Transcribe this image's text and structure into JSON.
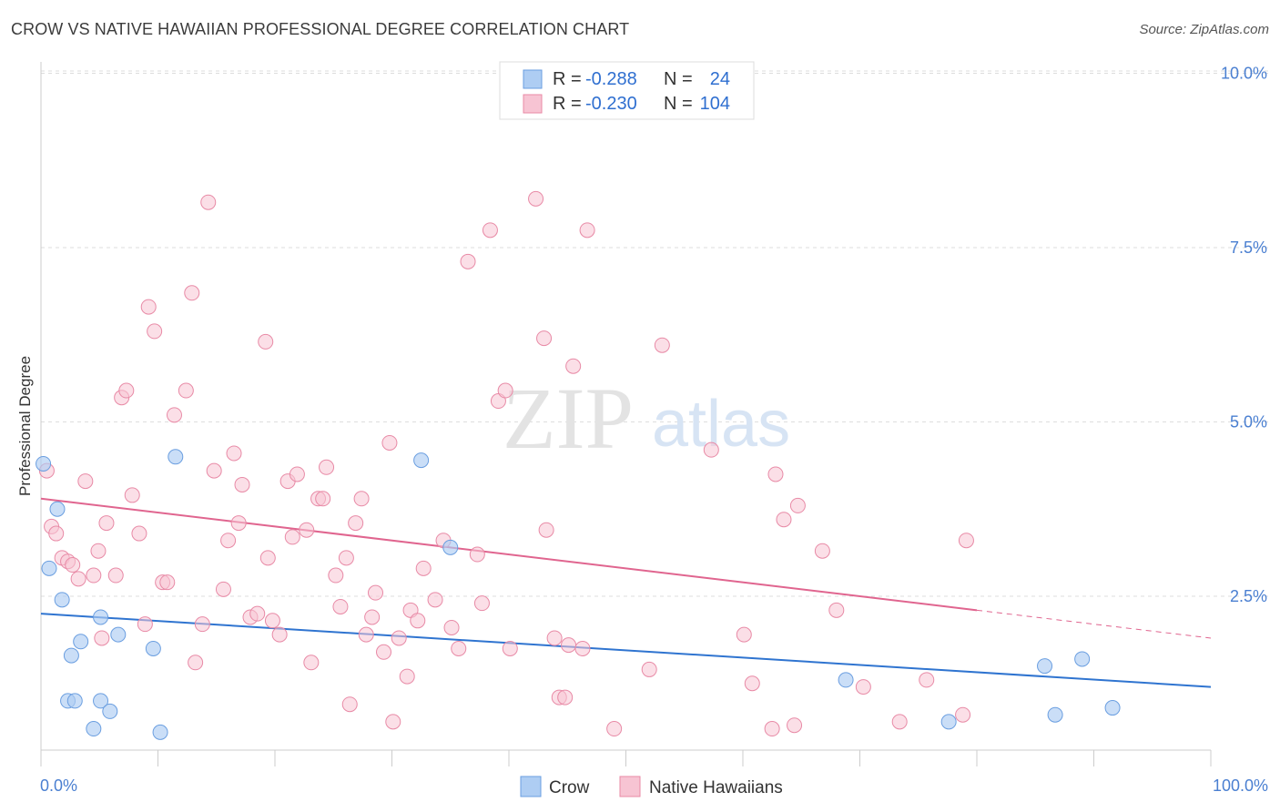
{
  "header": {
    "title": "CROW VS NATIVE HAWAIIAN PROFESSIONAL DEGREE CORRELATION CHART",
    "source": "Source: ZipAtlas.com"
  },
  "watermark": {
    "zip": "ZIP",
    "atlas": "atlas"
  },
  "legend": {
    "rows": [
      {
        "r_label": "R =",
        "r_value": "-0.288",
        "n_label": "N =",
        "n_value": "24"
      },
      {
        "r_label": "R =",
        "r_value": "-0.230",
        "n_label": "N =",
        "n_value": "104"
      }
    ]
  },
  "colors": {
    "crow_fill": "#aecdf3",
    "crow_stroke": "#6a9ee0",
    "crow_line": "#2f74d0",
    "hawaiian_fill": "#f7c4d3",
    "hawaiian_stroke": "#e88aa6",
    "hawaiian_line": "#e0658f",
    "tick_text": "#4a7fd1",
    "grid": "#dddddd"
  },
  "chart_data": {
    "type": "scatter",
    "title": "CROW VS NATIVE HAWAIIAN PROFESSIONAL DEGREE CORRELATION CHART",
    "xlabel": "",
    "ylabel": "Professional Degree",
    "xlim": [
      0,
      100
    ],
    "ylim": [
      0,
      10.5
    ],
    "x_tick_labels": [
      "0.0%",
      "100.0%"
    ],
    "y_ticks": [
      2.5,
      5.0,
      7.5,
      10.0
    ],
    "y_tick_labels": [
      "2.5%",
      "5.0%",
      "7.5%",
      "10.0%"
    ],
    "grid": true,
    "legend_position": "top-center",
    "series": [
      {
        "name": "Crow",
        "r": -0.288,
        "n": 24,
        "trend": {
          "x": [
            0,
            100
          ],
          "y": [
            2.25,
            1.2
          ]
        },
        "points": [
          [
            0.2,
            4.4
          ],
          [
            0.7,
            2.9
          ],
          [
            1.4,
            3.75
          ],
          [
            1.8,
            2.45
          ],
          [
            2.3,
            1.0
          ],
          [
            2.6,
            1.65
          ],
          [
            2.9,
            1.0
          ],
          [
            3.4,
            1.85
          ],
          [
            4.5,
            0.6
          ],
          [
            5.1,
            2.2
          ],
          [
            5.1,
            1.0
          ],
          [
            5.9,
            0.85
          ],
          [
            6.6,
            1.95
          ],
          [
            9.6,
            1.75
          ],
          [
            10.2,
            0.55
          ],
          [
            11.5,
            4.5
          ],
          [
            32.5,
            4.45
          ],
          [
            35.0,
            3.2
          ],
          [
            68.8,
            1.3
          ],
          [
            77.6,
            0.7
          ],
          [
            85.8,
            1.5
          ],
          [
            86.7,
            0.8
          ],
          [
            89.0,
            1.6
          ],
          [
            91.6,
            0.9
          ]
        ]
      },
      {
        "name": "Native Hawaiians",
        "r": -0.23,
        "n": 104,
        "trend": {
          "x": [
            0,
            80
          ],
          "y": [
            3.9,
            2.3
          ]
        },
        "trend_dashed": {
          "x": [
            80,
            100
          ],
          "y": [
            2.3,
            1.9
          ]
        },
        "points": [
          [
            0.5,
            4.3
          ],
          [
            0.9,
            3.5
          ],
          [
            1.3,
            3.4
          ],
          [
            1.8,
            3.05
          ],
          [
            2.3,
            3.0
          ],
          [
            2.7,
            2.95
          ],
          [
            3.2,
            2.75
          ],
          [
            3.8,
            4.15
          ],
          [
            4.5,
            2.8
          ],
          [
            4.9,
            3.15
          ],
          [
            5.2,
            1.9
          ],
          [
            5.6,
            3.55
          ],
          [
            6.4,
            2.8
          ],
          [
            6.9,
            5.35
          ],
          [
            7.3,
            5.45
          ],
          [
            7.8,
            3.95
          ],
          [
            8.4,
            3.4
          ],
          [
            8.9,
            2.1
          ],
          [
            9.2,
            6.65
          ],
          [
            9.7,
            6.3
          ],
          [
            10.4,
            2.7
          ],
          [
            10.8,
            2.7
          ],
          [
            11.4,
            5.1
          ],
          [
            12.4,
            5.45
          ],
          [
            12.9,
            6.85
          ],
          [
            13.2,
            1.55
          ],
          [
            13.8,
            2.1
          ],
          [
            14.3,
            8.15
          ],
          [
            14.8,
            4.3
          ],
          [
            15.6,
            2.6
          ],
          [
            16.0,
            3.3
          ],
          [
            16.5,
            4.55
          ],
          [
            16.9,
            3.55
          ],
          [
            17.2,
            4.1
          ],
          [
            17.9,
            2.2
          ],
          [
            18.5,
            2.25
          ],
          [
            19.2,
            6.15
          ],
          [
            19.4,
            3.05
          ],
          [
            19.8,
            2.15
          ],
          [
            20.4,
            1.95
          ],
          [
            21.1,
            4.15
          ],
          [
            21.5,
            3.35
          ],
          [
            21.9,
            4.25
          ],
          [
            22.7,
            3.45
          ],
          [
            23.1,
            1.55
          ],
          [
            23.7,
            3.9
          ],
          [
            24.1,
            3.9
          ],
          [
            24.4,
            4.35
          ],
          [
            25.2,
            2.8
          ],
          [
            25.6,
            2.35
          ],
          [
            26.1,
            3.05
          ],
          [
            26.4,
            0.95
          ],
          [
            26.9,
            3.55
          ],
          [
            27.4,
            3.9
          ],
          [
            27.8,
            1.95
          ],
          [
            28.3,
            2.2
          ],
          [
            28.6,
            2.55
          ],
          [
            29.3,
            1.7
          ],
          [
            29.8,
            4.7
          ],
          [
            30.1,
            0.7
          ],
          [
            30.6,
            1.9
          ],
          [
            31.3,
            1.35
          ],
          [
            31.6,
            2.3
          ],
          [
            32.2,
            2.15
          ],
          [
            32.7,
            2.9
          ],
          [
            33.7,
            2.45
          ],
          [
            34.4,
            3.3
          ],
          [
            35.1,
            2.05
          ],
          [
            35.7,
            1.75
          ],
          [
            36.5,
            7.3
          ],
          [
            37.3,
            3.1
          ],
          [
            37.7,
            2.4
          ],
          [
            38.4,
            7.75
          ],
          [
            39.1,
            5.3
          ],
          [
            39.7,
            5.45
          ],
          [
            40.1,
            1.75
          ],
          [
            42.3,
            8.2
          ],
          [
            43.0,
            6.2
          ],
          [
            43.2,
            3.45
          ],
          [
            43.9,
            1.9
          ],
          [
            44.3,
            1.05
          ],
          [
            44.8,
            1.05
          ],
          [
            45.1,
            1.8
          ],
          [
            45.5,
            5.8
          ],
          [
            46.3,
            1.75
          ],
          [
            46.7,
            7.75
          ],
          [
            49.0,
            0.6
          ],
          [
            52.0,
            1.45
          ],
          [
            53.1,
            6.1
          ],
          [
            57.3,
            4.6
          ],
          [
            60.1,
            1.95
          ],
          [
            60.8,
            1.25
          ],
          [
            62.5,
            0.6
          ],
          [
            62.8,
            4.25
          ],
          [
            63.5,
            3.6
          ],
          [
            64.4,
            0.65
          ],
          [
            64.7,
            3.8
          ],
          [
            66.8,
            3.15
          ],
          [
            68.0,
            2.3
          ],
          [
            70.3,
            1.2
          ],
          [
            73.4,
            0.7
          ],
          [
            75.7,
            1.3
          ],
          [
            78.8,
            0.8
          ],
          [
            79.1,
            3.3
          ]
        ]
      }
    ]
  }
}
